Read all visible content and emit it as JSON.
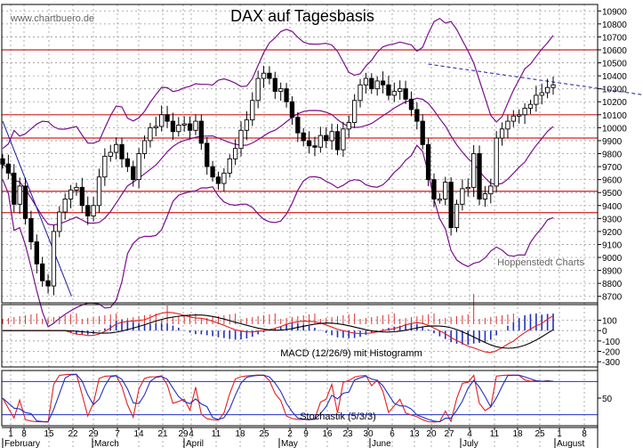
{
  "watermark": "www.chartbuero.de",
  "credit": "Hoppenstedt Charts",
  "chart_data": [
    {
      "type": "candlestick",
      "title": "DAX auf Tagesbasis",
      "ylim": [
        8650,
        10950
      ],
      "y_ticks": [
        8700,
        8800,
        8900,
        9000,
        9100,
        9200,
        9300,
        9400,
        9500,
        9600,
        9700,
        9800,
        9900,
        10000,
        10100,
        10200,
        10300,
        10400,
        10500,
        10600,
        10700,
        10800,
        10900
      ],
      "day_ticks": [
        "1",
        "8",
        "15",
        "22",
        "29",
        "7",
        "14",
        "21",
        "29",
        "4",
        "11",
        "18",
        "25",
        "2",
        "9",
        "16",
        "23",
        "30",
        "6",
        "13",
        "20",
        "27",
        "4",
        "11",
        "18",
        "25",
        "1",
        "8"
      ],
      "month_labels": [
        "February",
        "March",
        "April",
        "May",
        "June",
        "July",
        "August"
      ],
      "horizontal_lines": [
        10600,
        10100,
        9920,
        9510,
        9345
      ],
      "trendlines": [
        {
          "style": "dashed",
          "color": "#1a1aa0",
          "from": [
            75,
            10490
          ],
          "to": [
            123,
            10170
          ]
        },
        {
          "style": "solid",
          "color": "#1a1aa0",
          "from": [
            0,
            10050
          ],
          "to": [
            9,
            8700
          ]
        }
      ],
      "closes": [
        9720,
        9650,
        9410,
        9550,
        9300,
        9120,
        8950,
        8820,
        8780,
        9200,
        9350,
        9450,
        9520,
        9540,
        9400,
        9320,
        9400,
        9620,
        9780,
        9810,
        9870,
        9760,
        9700,
        9600,
        9800,
        9900,
        10000,
        10010,
        10100,
        10050,
        9970,
        10020,
        10030,
        9980,
        10050,
        9880,
        9700,
        9620,
        9570,
        9650,
        9760,
        9840,
        9980,
        10060,
        10210,
        10380,
        10420,
        10380,
        10280,
        10300,
        10200,
        10080,
        9960,
        9900,
        9860,
        9850,
        9940,
        9900,
        9970,
        9830,
        9990,
        10040,
        10210,
        10330,
        10380,
        10300,
        10360,
        10330,
        10250,
        10280,
        10300,
        10220,
        10140,
        10050,
        9870,
        9600,
        9450,
        9450,
        9580,
        9230,
        9410,
        9530,
        9540,
        9800,
        9450,
        9490,
        9550,
        9920,
        9990,
        10050,
        10090,
        10100,
        10150,
        10180,
        10250,
        10270,
        10310,
        10330
      ]
    },
    {
      "type": "line",
      "title": "MACD (12/26/9) mit Histogramm",
      "ylim": [
        -350,
        250
      ],
      "y_ticks": [
        100,
        0,
        -100,
        -200,
        -300
      ],
      "series": [],
      "histogram": true
    },
    {
      "type": "line",
      "title": "Stochastik (5/3/3)",
      "ylim": [
        0,
        100
      ],
      "y_ticks": [
        50
      ],
      "levels": [
        80,
        20
      ],
      "series": []
    }
  ],
  "colors": {
    "candle": "#000000",
    "bollinger": "#7a0f8a",
    "hline": "#d42020",
    "trend": "#1a1aa0",
    "red_line": "#e02020",
    "black_line": "#000000",
    "blue_line": "#2030c0",
    "grid": "#9a9a9a"
  }
}
